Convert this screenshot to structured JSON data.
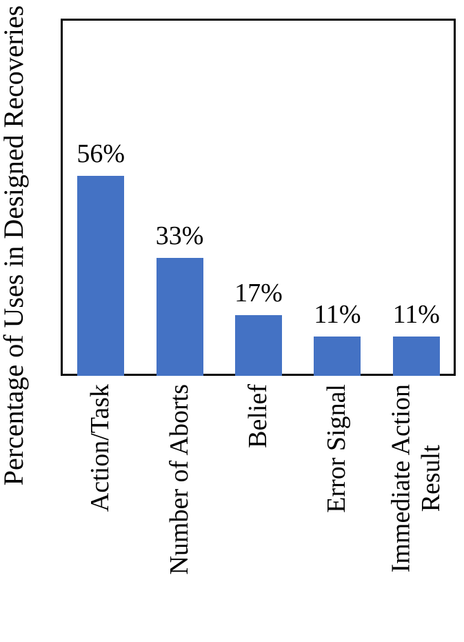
{
  "chart_data": {
    "type": "bar",
    "title": "",
    "xlabel": "",
    "ylabel": "Percentage of Uses in Designed Recoveries",
    "categories": [
      "Action/Task",
      "Number of Aborts",
      "Belief",
      "Error Signal",
      "Immediate Action Result"
    ],
    "category_label_lines": [
      [
        "Action/Task"
      ],
      [
        "Number of Aborts"
      ],
      [
        "Belief"
      ],
      [
        "Error Signal"
      ],
      [
        "Immediate Action",
        "Result"
      ]
    ],
    "values": [
      56,
      33,
      17,
      11,
      11
    ],
    "data_labels": [
      "56%",
      "33%",
      "17%",
      "11%",
      "11%"
    ],
    "ylim": [
      0,
      100
    ],
    "grid": false,
    "legend": false,
    "y_tick_labels_shown": false,
    "bar_color": "#4472C4",
    "axis_color": "#000000",
    "text_color": "#000000",
    "background": "#FFFFFF"
  }
}
